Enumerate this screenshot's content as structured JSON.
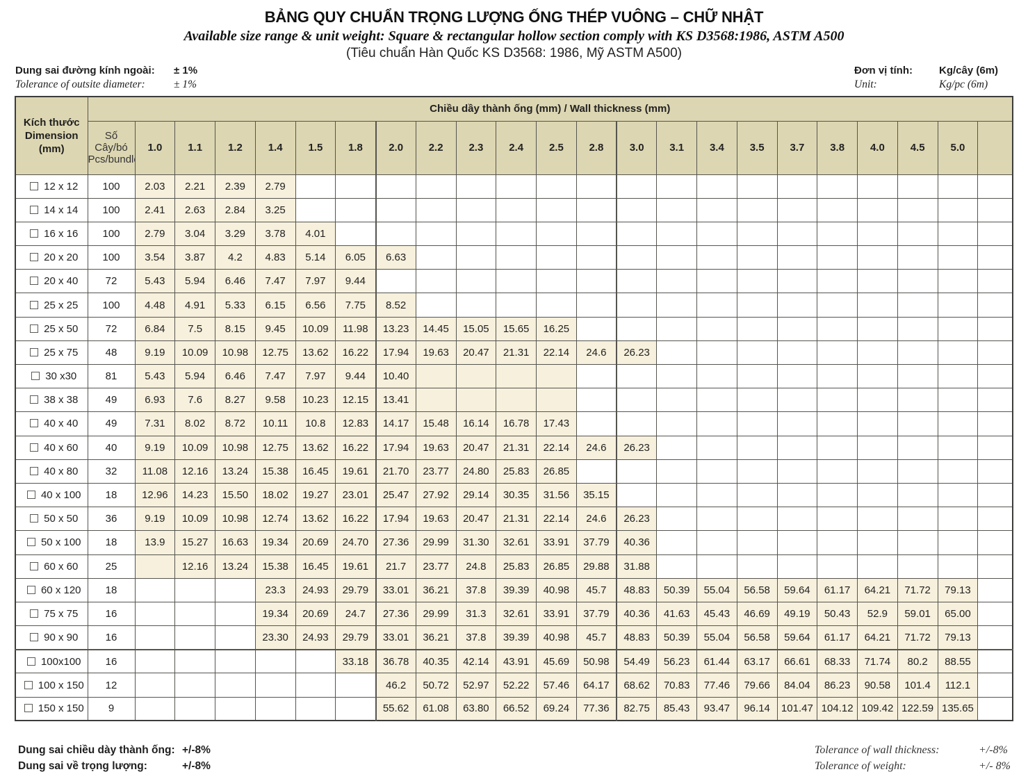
{
  "page": {
    "title": "BẢNG QUY CHUẨN TRỌNG LƯỢNG ỐNG THÉP VUÔNG – CHỮ NHẬT",
    "subtitle": "Available size range & unit weight: Square & rectangular hollow section comply with KS D3568:1986, ASTM A500",
    "subtitle2": "(Tiêu chuẩn Hàn Quốc KS D3568: 1986, Mỹ ASTM A500)"
  },
  "meta": {
    "tolerance_vi_label": "Dung sai đường kính ngoài:",
    "tolerance_vi_value": "± 1%",
    "tolerance_en_label": "Tolerance of outsite diameter:",
    "tolerance_en_value": "± 1%",
    "unit_vi_label": "Đơn vị tính:",
    "unit_vi_value": "Kg/cây (6m)",
    "unit_en_label": "Unit:",
    "unit_en_value": "Kg/pc (6m)"
  },
  "table": {
    "group_header": "Chiều dầy thành ống (mm) / Wall thickness (mm)",
    "dimension_header_lines": [
      "Kích thước",
      "Dimension",
      "(mm)"
    ],
    "pcs_header_lines": [
      "Số",
      "Cây/bó",
      "Pcs/bundle"
    ],
    "thickness_columns": [
      "1.0",
      "1.1",
      "1.2",
      "1.4",
      "1.5",
      "1.8",
      "2.0",
      "2.2",
      "2.3",
      "2.4",
      "2.5",
      "2.8",
      "3.0",
      "3.1",
      "3.4",
      "3.5",
      "3.7",
      "3.8",
      "4.0",
      "4.5",
      "5.0"
    ],
    "rows": [
      {
        "dimension": "12 x 12",
        "pcs": "100",
        "start": 0,
        "shade_start": 0,
        "shade_end": 3,
        "values": [
          "2.03",
          "2.21",
          "2.39",
          "2.79"
        ]
      },
      {
        "dimension": "14 x 14",
        "pcs": "100",
        "start": 0,
        "shade_start": 0,
        "shade_end": 3,
        "values": [
          "2.41",
          "2.63",
          "2.84",
          "3.25"
        ]
      },
      {
        "dimension": "16 x 16",
        "pcs": "100",
        "start": 0,
        "shade_start": 0,
        "shade_end": 4,
        "values": [
          "2.79",
          "3.04",
          "3.29",
          "3.78",
          "4.01"
        ]
      },
      {
        "dimension": "20 x 20",
        "pcs": "100",
        "start": 0,
        "shade_start": 0,
        "shade_end": 6,
        "values": [
          "3.54",
          "3.87",
          "4.2",
          "4.83",
          "5.14",
          "6.05",
          "6.63"
        ]
      },
      {
        "dimension": "20 x 40",
        "pcs": "72",
        "start": 0,
        "shade_start": 0,
        "shade_end": 5,
        "values": [
          "5.43",
          "5.94",
          "6.46",
          "7.47",
          "7.97",
          "9.44"
        ]
      },
      {
        "dimension": "25 x 25",
        "pcs": "100",
        "start": 0,
        "shade_start": 0,
        "shade_end": 6,
        "values": [
          "4.48",
          "4.91",
          "5.33",
          "6.15",
          "6.56",
          "7.75",
          "8.52"
        ]
      },
      {
        "dimension": "25 x 50",
        "pcs": "72",
        "start": 0,
        "shade_start": 0,
        "shade_end": 10,
        "values": [
          "6.84",
          "7.5",
          "8.15",
          "9.45",
          "10.09",
          "11.98",
          "13.23",
          "14.45",
          "15.05",
          "15.65",
          "16.25"
        ]
      },
      {
        "dimension": "25 x 75",
        "pcs": "48",
        "start": 0,
        "shade_start": 0,
        "shade_end": 12,
        "values": [
          "9.19",
          "10.09",
          "10.98",
          "12.75",
          "13.62",
          "16.22",
          "17.94",
          "19.63",
          "20.47",
          "21.31",
          "22.14",
          "24.6",
          "26.23"
        ]
      },
      {
        "dimension": "30 x30",
        "pcs": "81",
        "start": 0,
        "shade_start": 0,
        "shade_end": 10,
        "values": [
          "5.43",
          "5.94",
          "6.46",
          "7.47",
          "7.97",
          "9.44",
          "10.40"
        ]
      },
      {
        "dimension": "38 x 38",
        "pcs": "49",
        "start": 0,
        "shade_start": 0,
        "shade_end": 10,
        "values": [
          "6.93",
          "7.6",
          "8.27",
          "9.58",
          "10.23",
          "12.15",
          "13.41"
        ]
      },
      {
        "dimension": "40 x 40",
        "pcs": "49",
        "start": 0,
        "shade_start": 0,
        "shade_end": 10,
        "values": [
          "7.31",
          "8.02",
          "8.72",
          "10.11",
          "10.8",
          "12.83",
          "14.17",
          "15.48",
          "16.14",
          "16.78",
          "17.43"
        ]
      },
      {
        "dimension": "40 x 60",
        "pcs": "40",
        "start": 0,
        "shade_start": 0,
        "shade_end": 12,
        "values": [
          "9.19",
          "10.09",
          "10.98",
          "12.75",
          "13.62",
          "16.22",
          "17.94",
          "19.63",
          "20.47",
          "21.31",
          "22.14",
          "24.6",
          "26.23"
        ]
      },
      {
        "dimension": "40 x 80",
        "pcs": "32",
        "start": 0,
        "shade_start": 0,
        "shade_end": 10,
        "values": [
          "11.08",
          "12.16",
          "13.24",
          "15.38",
          "16.45",
          "19.61",
          "21.70",
          "23.77",
          "24.80",
          "25.83",
          "26.85"
        ]
      },
      {
        "dimension": "40 x 100",
        "pcs": "18",
        "start": 0,
        "shade_start": 0,
        "shade_end": 11,
        "values": [
          "12.96",
          "14.23",
          "15.50",
          "18.02",
          "19.27",
          "23.01",
          "25.47",
          "27.92",
          "29.14",
          "30.35",
          "31.56",
          "35.15"
        ]
      },
      {
        "dimension": "50 x 50",
        "pcs": "36",
        "start": 0,
        "shade_start": 0,
        "shade_end": 12,
        "values": [
          "9.19",
          "10.09",
          "10.98",
          "12.74",
          "13.62",
          "16.22",
          "17.94",
          "19.63",
          "20.47",
          "21.31",
          "22.14",
          "24.6",
          "26.23"
        ]
      },
      {
        "dimension": "50 x 100",
        "pcs": "18",
        "start": 0,
        "shade_start": 0,
        "shade_end": 12,
        "values": [
          "13.9",
          "15.27",
          "16.63",
          "19.34",
          "20.69",
          "24.70",
          "27.36",
          "29.99",
          "31.30",
          "32.61",
          "33.91",
          "37.79",
          "40.36"
        ]
      },
      {
        "dimension": "60 x 60",
        "pcs": "25",
        "start": 1,
        "shade_start": 0,
        "shade_end": 12,
        "values": [
          "12.16",
          "13.24",
          "15.38",
          "16.45",
          "19.61",
          "21.7",
          "23.77",
          "24.8",
          "25.83",
          "26.85",
          "29.88",
          "31.88"
        ]
      },
      {
        "dimension": "60 x 120",
        "pcs": "18",
        "start": 3,
        "shade_start": 3,
        "shade_end": 20,
        "values": [
          "23.3",
          "24.93",
          "29.79",
          "33.01",
          "36.21",
          "37.8",
          "39.39",
          "40.98",
          "45.7",
          "48.83",
          "50.39",
          "55.04",
          "56.58",
          "59.64",
          "61.17",
          "64.21",
          "71.72",
          "79.13"
        ]
      },
      {
        "dimension": "75 x 75",
        "pcs": "16",
        "start": 3,
        "shade_start": 3,
        "shade_end": 20,
        "values": [
          "19.34",
          "20.69",
          "24.7",
          "27.36",
          "29.99",
          "31.3",
          "32.61",
          "33.91",
          "37.79",
          "40.36",
          "41.63",
          "45.43",
          "46.69",
          "49.19",
          "50.43",
          "52.9",
          "59.01",
          "65.00"
        ]
      },
      {
        "dimension": "90 x 90",
        "pcs": "16",
        "start": 3,
        "shade_start": 3,
        "shade_end": 20,
        "values": [
          "23.30",
          "24.93",
          "29.79",
          "33.01",
          "36.21",
          "37.8",
          "39.39",
          "40.98",
          "45.7",
          "48.83",
          "50.39",
          "55.04",
          "56.58",
          "59.64",
          "61.17",
          "64.21",
          "71.72",
          "79.13"
        ]
      },
      {
        "dimension": "100x100",
        "pcs": "16",
        "start": 5,
        "shade_start": 5,
        "shade_end": 20,
        "thick_top": true,
        "values": [
          "33.18",
          "36.78",
          "40.35",
          "42.14",
          "43.91",
          "45.69",
          "50.98",
          "54.49",
          "56.23",
          "61.44",
          "63.17",
          "66.61",
          "68.33",
          "71.74",
          "80.2",
          "88.55"
        ]
      },
      {
        "dimension": "100 x 150",
        "pcs": "12",
        "start": 6,
        "shade_start": 6,
        "shade_end": 20,
        "values": [
          "46.2",
          "50.72",
          "52.97",
          "52.22",
          "57.46",
          "64.17",
          "68.62",
          "70.83",
          "77.46",
          "79.66",
          "84.04",
          "86.23",
          "90.58",
          "101.4",
          "112.1"
        ]
      },
      {
        "dimension": "150 x 150",
        "pcs": "9",
        "start": 6,
        "shade_start": 6,
        "shade_end": 20,
        "values": [
          "55.62",
          "61.08",
          "63.80",
          "66.52",
          "69.24",
          "77.36",
          "82.75",
          "85.43",
          "93.47",
          "96.14",
          "101.47",
          "104.12",
          "109.42",
          "122.59",
          "135.65"
        ]
      }
    ]
  },
  "footer": {
    "wall_vi_label": "Dung sai chiều dày thành ống:",
    "wall_vi_value": "+/-8%",
    "weight_vi_label": "Dung sai về trọng lượng:",
    "weight_vi_value": "+/-8%",
    "wall_en_label": "Tolerance of wall thickness:",
    "wall_en_value": "+/-8%",
    "weight_en_label": "Tolerance of weight:",
    "weight_en_value": "+/- 8%"
  },
  "colors": {
    "header_bg": "#dcd6b2",
    "shaded_cell_bg": "#f6f0dc",
    "border": "#55544f"
  }
}
